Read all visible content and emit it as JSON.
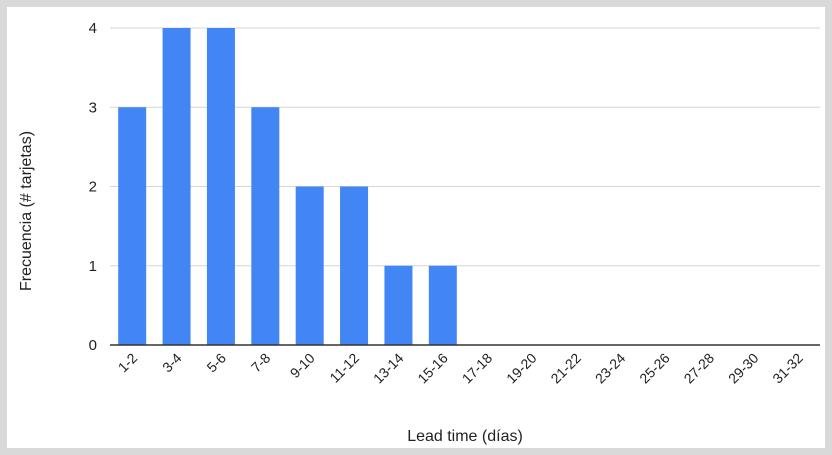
{
  "chart_data": {
    "type": "bar",
    "xlabel": "Lead time (días)",
    "ylabel": "Frecuencia (# tarjetas)",
    "categories": [
      "1-2",
      "3-4",
      "5-6",
      "7-8",
      "9-10",
      "11-12",
      "13-14",
      "15-16",
      "17-18",
      "19-20",
      "21-22",
      "23-24",
      "25-26",
      "27-28",
      "29-30",
      "31-32"
    ],
    "values": [
      3,
      4,
      4,
      3,
      2,
      2,
      1,
      1,
      0,
      0,
      0,
      0,
      0,
      0,
      0,
      0
    ],
    "yticks": [
      "0",
      "1",
      "2",
      "3",
      "4"
    ],
    "ylim": [
      0,
      4
    ],
    "grid": true,
    "legend": "none",
    "bar_color": "#4285f4"
  }
}
